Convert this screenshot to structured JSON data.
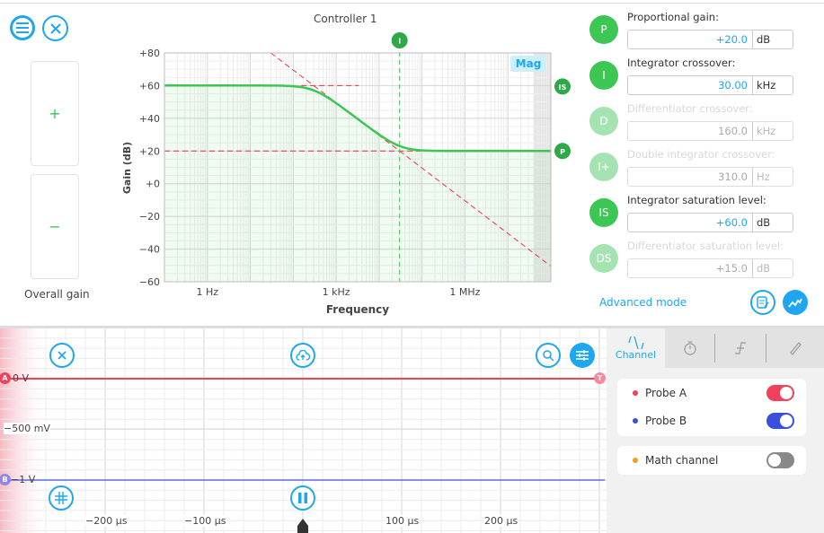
{
  "controller": {
    "title": "Controller 1",
    "overall_gain_label": "Overall gain",
    "plus": "+",
    "minus": "−"
  },
  "chart_data": {
    "type": "line",
    "title": "Controller 1",
    "xlabel": "Frequency",
    "ylabel": "Gain (dB)",
    "xscale": "log",
    "xlim_hz": [
      0.1,
      100000000
    ],
    "ylim": [
      -60,
      80
    ],
    "yticks": [
      "+80",
      "+60",
      "+40",
      "+20",
      "+0",
      "−20",
      "−40",
      "−60"
    ],
    "ytick_values": [
      80,
      60,
      40,
      20,
      0,
      -20,
      -40,
      -60
    ],
    "xticks": [
      {
        "label": "1 Hz",
        "hz": 1
      },
      {
        "label": "1 kHz",
        "hz": 1000
      },
      {
        "label": "1 MHz",
        "hz": 1000000
      }
    ],
    "badge_mag": "Mag",
    "series": [
      {
        "name": "Gain",
        "color": "#3cc654",
        "proportional_db": 20,
        "integrator_crossover_hz": 30000,
        "saturation_db": 60
      }
    ],
    "markers": [
      {
        "label": "I",
        "hz": 30000
      },
      {
        "label": "IS",
        "db": 60
      },
      {
        "label": "P",
        "db": 20
      }
    ]
  },
  "params": [
    {
      "badge": "P",
      "label": "Proportional gain:",
      "value": "+20.0",
      "unit": "dB",
      "enabled": true
    },
    {
      "badge": "I",
      "label": "Integrator crossover:",
      "value": "30.00",
      "unit": "kHz",
      "enabled": true
    },
    {
      "badge": "D",
      "label": "Differentiator crossover:",
      "value": "160.0",
      "unit": "kHz",
      "enabled": false
    },
    {
      "badge": "I+",
      "label": "Double integrator crossover:",
      "value": "310.0",
      "unit": "Hz",
      "enabled": false
    },
    {
      "badge": "IS",
      "label": "Integrator saturation level:",
      "value": "+60.0",
      "unit": "dB",
      "enabled": true
    },
    {
      "badge": "DS",
      "label": "Differentiator saturation level:",
      "value": "+15.0",
      "unit": "dB",
      "enabled": false
    }
  ],
  "advanced_mode": "Advanced mode",
  "scope": {
    "y_labels": {
      "zero": "0 V",
      "mid": "−500 mV",
      "low": "−1 V"
    },
    "probe_a_marker": "A",
    "probe_b_marker": "B",
    "trigger_marker": "T",
    "time_labels": [
      "−200 µs",
      "−100 µs",
      "100 µs",
      "200 µs"
    ],
    "colors": {
      "probe_a": "#f0405a",
      "probe_b": "#3a4fdc",
      "math": "#f59a1e"
    }
  },
  "side_panel": {
    "tabs": [
      {
        "label": "Channel",
        "icon": "sine-wave-icon"
      },
      {
        "icon": "stopwatch-icon"
      },
      {
        "icon": "trigger-edge-icon"
      },
      {
        "icon": "ruler-icon"
      }
    ],
    "probes": [
      {
        "name": "Probe A",
        "on": true
      },
      {
        "name": "Probe B",
        "on": true
      }
    ],
    "math": {
      "name": "Math channel",
      "on": false
    }
  }
}
